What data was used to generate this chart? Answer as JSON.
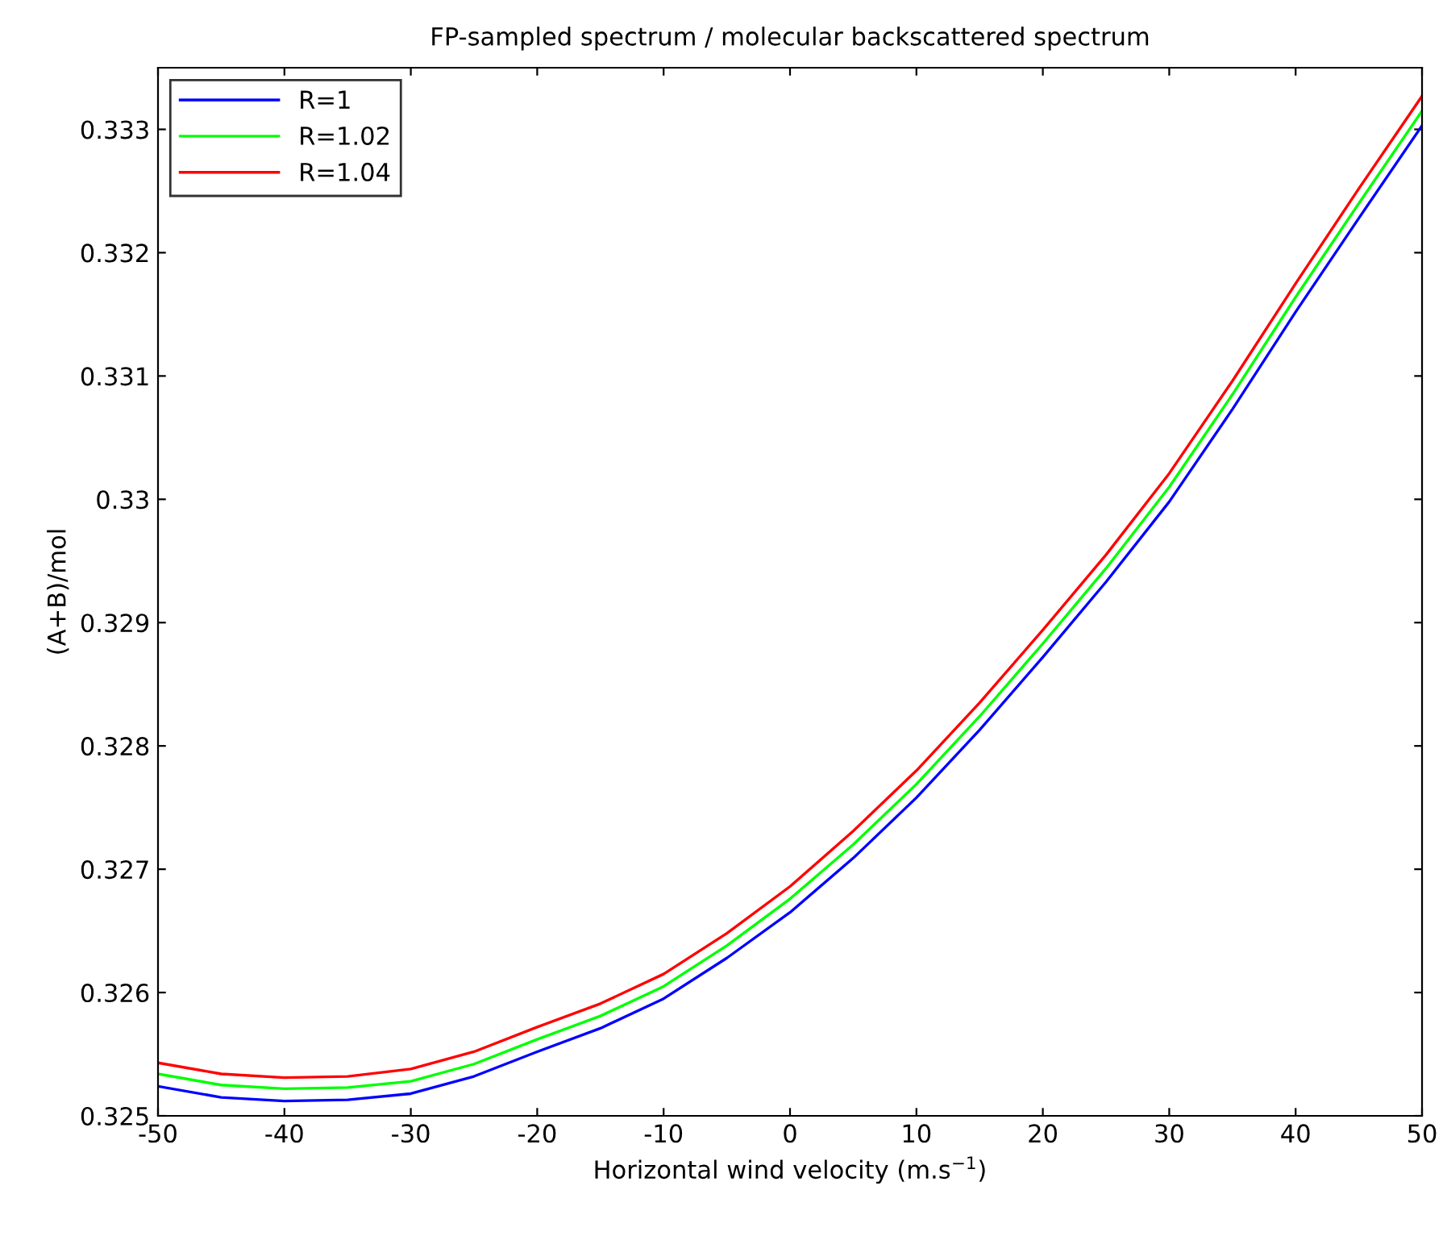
{
  "chart_data": {
    "type": "line",
    "title": "FP-sampled spectrum / molecular backscattered spectrum",
    "xlabel": "Horizontal wind velocity (m.s$^{−1}$)",
    "ylabel": "(A+B)/mol",
    "x": [
      -50,
      -45,
      -40,
      -35,
      -30,
      -25,
      -20,
      -15,
      -10,
      -5,
      0,
      5,
      10,
      15,
      20,
      25,
      30,
      35,
      40,
      45,
      50
    ],
    "series": [
      {
        "name": "R=1",
        "color": "#0000ff",
        "values": [
          0.32524,
          0.32515,
          0.32512,
          0.32513,
          0.32518,
          0.32532,
          0.32552,
          0.32571,
          0.32595,
          0.32628,
          0.32665,
          0.32709,
          0.32758,
          0.32813,
          0.32872,
          0.32933,
          0.32998,
          0.33073,
          0.33152,
          0.33228,
          0.33303
        ]
      },
      {
        "name": "R=1.02",
        "color": "#00ff00",
        "values": [
          0.32534,
          0.32525,
          0.32522,
          0.32523,
          0.32528,
          0.32542,
          0.32562,
          0.32581,
          0.32605,
          0.32638,
          0.32676,
          0.3272,
          0.32769,
          0.32824,
          0.32883,
          0.32944,
          0.3301,
          0.33085,
          0.33164,
          0.3324,
          0.33315
        ]
      },
      {
        "name": "R=1.04",
        "color": "#ff0000",
        "values": [
          0.32543,
          0.32534,
          0.32531,
          0.32532,
          0.32538,
          0.32552,
          0.32572,
          0.32591,
          0.32615,
          0.32648,
          0.32686,
          0.32731,
          0.3278,
          0.32835,
          0.32894,
          0.32955,
          0.33021,
          0.33096,
          0.33175,
          0.33252,
          0.33327
        ]
      }
    ],
    "xlim": [
      -50,
      50
    ],
    "xticks": [
      -50,
      -40,
      -30,
      -20,
      -10,
      0,
      10,
      20,
      30,
      40,
      50
    ],
    "ylim": [
      0.325,
      0.3335
    ],
    "yticks": [
      0.325,
      0.326,
      0.327,
      0.328,
      0.329,
      0.33,
      0.331,
      0.332,
      0.333
    ],
    "grid": false,
    "legend": "top left"
  }
}
